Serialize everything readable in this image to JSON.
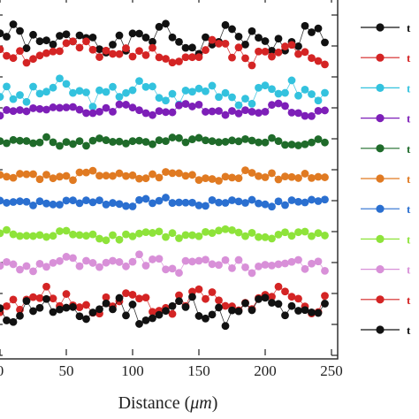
{
  "chart_data": {
    "type": "line",
    "xlabel_prefix": "Distance (",
    "xlabel_unit": "μm",
    "xlabel_suffix": ")",
    "xticks": [
      0,
      50,
      100,
      150,
      200,
      250
    ],
    "xtick_labels": [
      "0",
      "50",
      "100",
      "150",
      "200",
      "250"
    ],
    "xlim": [
      0,
      255
    ],
    "ylim": [
      0,
      11.6
    ],
    "grid": false,
    "legend_position": "right",
    "series": [
      {
        "label": "t",
        "color": "#111111",
        "marker": "#111111",
        "baseline": 10.2,
        "amp": 0.35,
        "seed": 1
      },
      {
        "label": "t",
        "color": "#d42424",
        "marker": "#d42424",
        "baseline": 9.8,
        "amp": 0.3,
        "seed": 2
      },
      {
        "label": "t",
        "color": "#33c2de",
        "marker": "#33c2de",
        "baseline": 8.5,
        "amp": 0.3,
        "seed": 3
      },
      {
        "label": "t",
        "color": "#7d1fb8",
        "marker": "#7d1fb8",
        "baseline": 7.95,
        "amp": 0.15,
        "seed": 4
      },
      {
        "label": "t",
        "color": "#1f6b2a",
        "marker": "#1f6b2a",
        "baseline": 6.9,
        "amp": 0.12,
        "seed": 5
      },
      {
        "label": "t",
        "color": "#e07a22",
        "marker": "#e07a22",
        "baseline": 5.8,
        "amp": 0.12,
        "seed": 6
      },
      {
        "label": "t",
        "color": "#2a6fd0",
        "marker": "#2a6fd0",
        "baseline": 4.95,
        "amp": 0.1,
        "seed": 7
      },
      {
        "label": "t",
        "color": "#8ee33a",
        "marker": "#8ee33a",
        "baseline": 3.9,
        "amp": 0.12,
        "seed": 8
      },
      {
        "label": "t",
        "color": "#d890d8",
        "marker": "#d890d8",
        "baseline": 2.95,
        "amp": 0.2,
        "seed": 9
      },
      {
        "label": "t",
        "color": "#d42424",
        "marker": "#d42424",
        "baseline": 1.75,
        "amp": 0.3,
        "seed": 10
      },
      {
        "label": "t",
        "color": "#111111",
        "marker": "#111111",
        "baseline": 1.45,
        "amp": 0.35,
        "seed": 11
      }
    ]
  }
}
